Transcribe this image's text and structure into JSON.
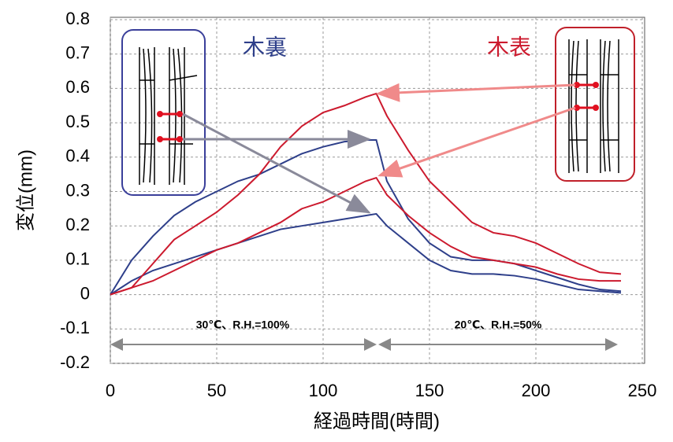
{
  "chart_data": {
    "type": "line",
    "x_label": "経過時間(時間)",
    "y_label": "変位(mm)",
    "annotations": [
      "木裏",
      "木表",
      "30℃、R.H.=100%",
      "20℃、R.H.=50%"
    ],
    "x": [
      0,
      10,
      20,
      30,
      40,
      50,
      60,
      70,
      80,
      90,
      100,
      110,
      120,
      125,
      130,
      140,
      150,
      160,
      170,
      180,
      190,
      200,
      210,
      220,
      230,
      240
    ],
    "series": [
      {
        "color": "#2e3f8a",
        "values": [
          0,
          0.1,
          0.17,
          0.23,
          0.27,
          0.3,
          0.33,
          0.35,
          0.38,
          0.41,
          0.43,
          0.445,
          0.45,
          0.45,
          0.33,
          0.22,
          0.15,
          0.11,
          0.1,
          0.1,
          0.09,
          0.07,
          0.05,
          0.03,
          0.015,
          0.01
        ]
      },
      {
        "color": "#2e3f8a",
        "values": [
          0,
          0.04,
          0.07,
          0.09,
          0.11,
          0.13,
          0.15,
          0.17,
          0.19,
          0.2,
          0.21,
          0.22,
          0.23,
          0.235,
          0.2,
          0.15,
          0.1,
          0.07,
          0.06,
          0.06,
          0.055,
          0.045,
          0.03,
          0.015,
          0.01,
          0.005
        ]
      },
      {
        "color": "#cc1a2e",
        "values": [
          0,
          0.02,
          0.09,
          0.16,
          0.2,
          0.24,
          0.29,
          0.35,
          0.43,
          0.49,
          0.53,
          0.55,
          0.575,
          0.585,
          0.52,
          0.42,
          0.33,
          0.27,
          0.21,
          0.18,
          0.17,
          0.15,
          0.12,
          0.09,
          0.065,
          0.06
        ]
      },
      {
        "color": "#cc1a2e",
        "values": [
          0,
          0.02,
          0.04,
          0.07,
          0.1,
          0.13,
          0.15,
          0.18,
          0.21,
          0.25,
          0.27,
          0.3,
          0.33,
          0.34,
          0.29,
          0.23,
          0.18,
          0.14,
          0.11,
          0.1,
          0.09,
          0.08,
          0.06,
          0.045,
          0.04,
          0.04
        ]
      }
    ],
    "xlim": [
      0,
      250
    ],
    "xticks": [
      0,
      50,
      100,
      150,
      200,
      250
    ],
    "ylim": [
      -0.2,
      0.8
    ],
    "yticks": [
      0.8,
      0.7,
      0.6,
      0.5,
      0.4,
      0.3,
      0.2,
      0.1,
      0,
      -0.1,
      -0.2
    ],
    "grid": true
  }
}
